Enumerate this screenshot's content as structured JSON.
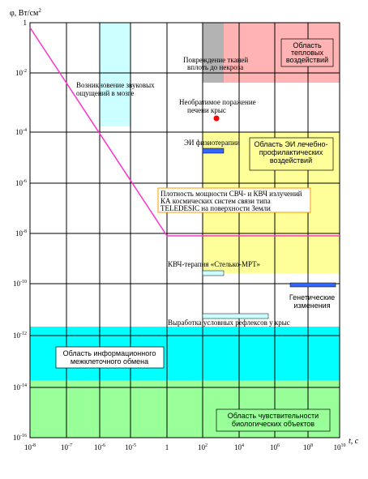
{
  "axes": {
    "y_label": "φ, Вт/см",
    "y_label_sup": "2",
    "x_label": "t, с",
    "x_ticks": [
      {
        "base": "10",
        "exp": "-8"
      },
      {
        "base": "10",
        "exp": "-7"
      },
      {
        "base": "10",
        "exp": "-6"
      },
      {
        "base": "10",
        "exp": "-5"
      },
      {
        "base": "1",
        "exp": ""
      },
      {
        "base": "10",
        "exp": "2"
      },
      {
        "base": "10",
        "exp": "4"
      },
      {
        "base": "10",
        "exp": "6"
      },
      {
        "base": "10",
        "exp": "8"
      },
      {
        "base": "10",
        "exp": "10"
      }
    ],
    "y_ticks": [
      {
        "base": "1",
        "exp": ""
      },
      {
        "base": "10",
        "exp": "-2"
      },
      {
        "base": "10",
        "exp": "-4"
      },
      {
        "base": "10",
        "exp": "-6"
      },
      {
        "base": "10",
        "exp": "-8"
      },
      {
        "base": "10",
        "exp": "-10"
      },
      {
        "base": "10",
        "exp": "-12"
      },
      {
        "base": "10",
        "exp": "-14"
      },
      {
        "base": "10",
        "exp": "-16"
      }
    ]
  },
  "labels": {
    "thermal": [
      "Область",
      "тепловых",
      "воздействий"
    ],
    "tissue_damage": [
      "Повреждение тканей",
      "вплоть до некроза"
    ],
    "sound": [
      "Возникновение звуковых",
      "ощущений в мозге"
    ],
    "liver": [
      "Необратимое поражение",
      "печени крыс"
    ],
    "physio": "ЭИ физиотерапии",
    "therapy_area": [
      "Область  ЭИ лечебно-",
      "профилактических",
      "воздействий"
    ],
    "density": [
      "Плотность мощности СВЧ- и КВЧ излучений",
      "КА космических систем связи типа",
      "TELEDESIC на поверхности Земли"
    ],
    "kvch": "КВЧ-терапия «Стелько-МРТ»",
    "genetic": [
      "Генетические",
      "изменения"
    ],
    "reflex": "Выработка условных рефлексов у крыс",
    "info_exchange": [
      "Область информационного",
      "межклеточного обмена"
    ],
    "sensitivity": [
      "Область чувствительности",
      "биологических объектов"
    ]
  },
  "colors": {
    "thermal": "#ffb3b3",
    "tissue": "#b3b3b3",
    "sound": "#ccffff",
    "therapy": "#ffff99",
    "info": "#00ffff",
    "sensitivity": "#99ff99",
    "marker_blue": "#3366ff",
    "marker_light": "#ccffff",
    "line": "#ff33cc",
    "dot": "#ff0000"
  }
}
